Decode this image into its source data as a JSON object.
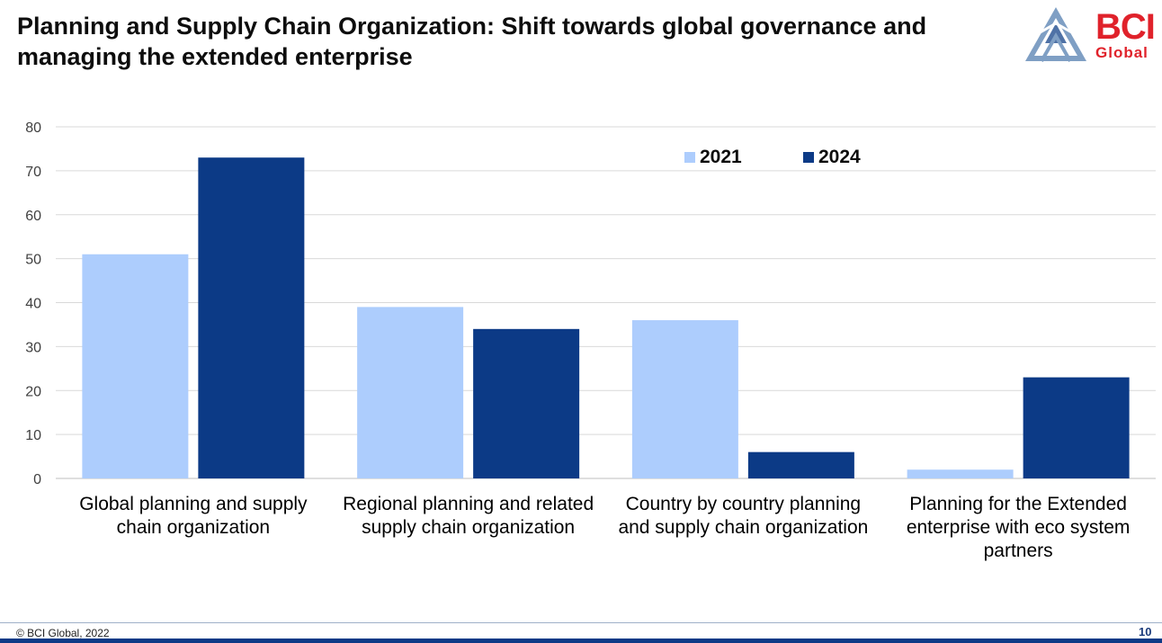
{
  "title": "Planning and Supply Chain Organization: Shift towards global governance and managing the extended enterprise",
  "logo": {
    "main": "BCI",
    "sub": "Global"
  },
  "footer": {
    "copyright": "© BCI Global, 2022",
    "page": "10"
  },
  "colors": {
    "series_2021": "#adcdfd",
    "series_2024": "#0c3a86",
    "brand": "#e0222b"
  },
  "chart_data": {
    "type": "bar",
    "categories": [
      [
        "Global planning and supply",
        "chain organization"
      ],
      [
        "Regional planning and related",
        "supply chain organization"
      ],
      [
        "Country by country planning",
        "and supply chain organization"
      ],
      [
        "Planning for the Extended",
        "enterprise with eco system",
        "partners"
      ]
    ],
    "series": [
      {
        "name": "2021",
        "values": [
          51,
          39,
          36,
          2
        ]
      },
      {
        "name": "2024",
        "values": [
          73,
          34,
          6,
          23
        ]
      }
    ],
    "ylim": [
      0,
      80
    ],
    "yticks": [
      0,
      10,
      20,
      30,
      40,
      50,
      60,
      70,
      80
    ],
    "grid": true,
    "legend": "top-right"
  }
}
